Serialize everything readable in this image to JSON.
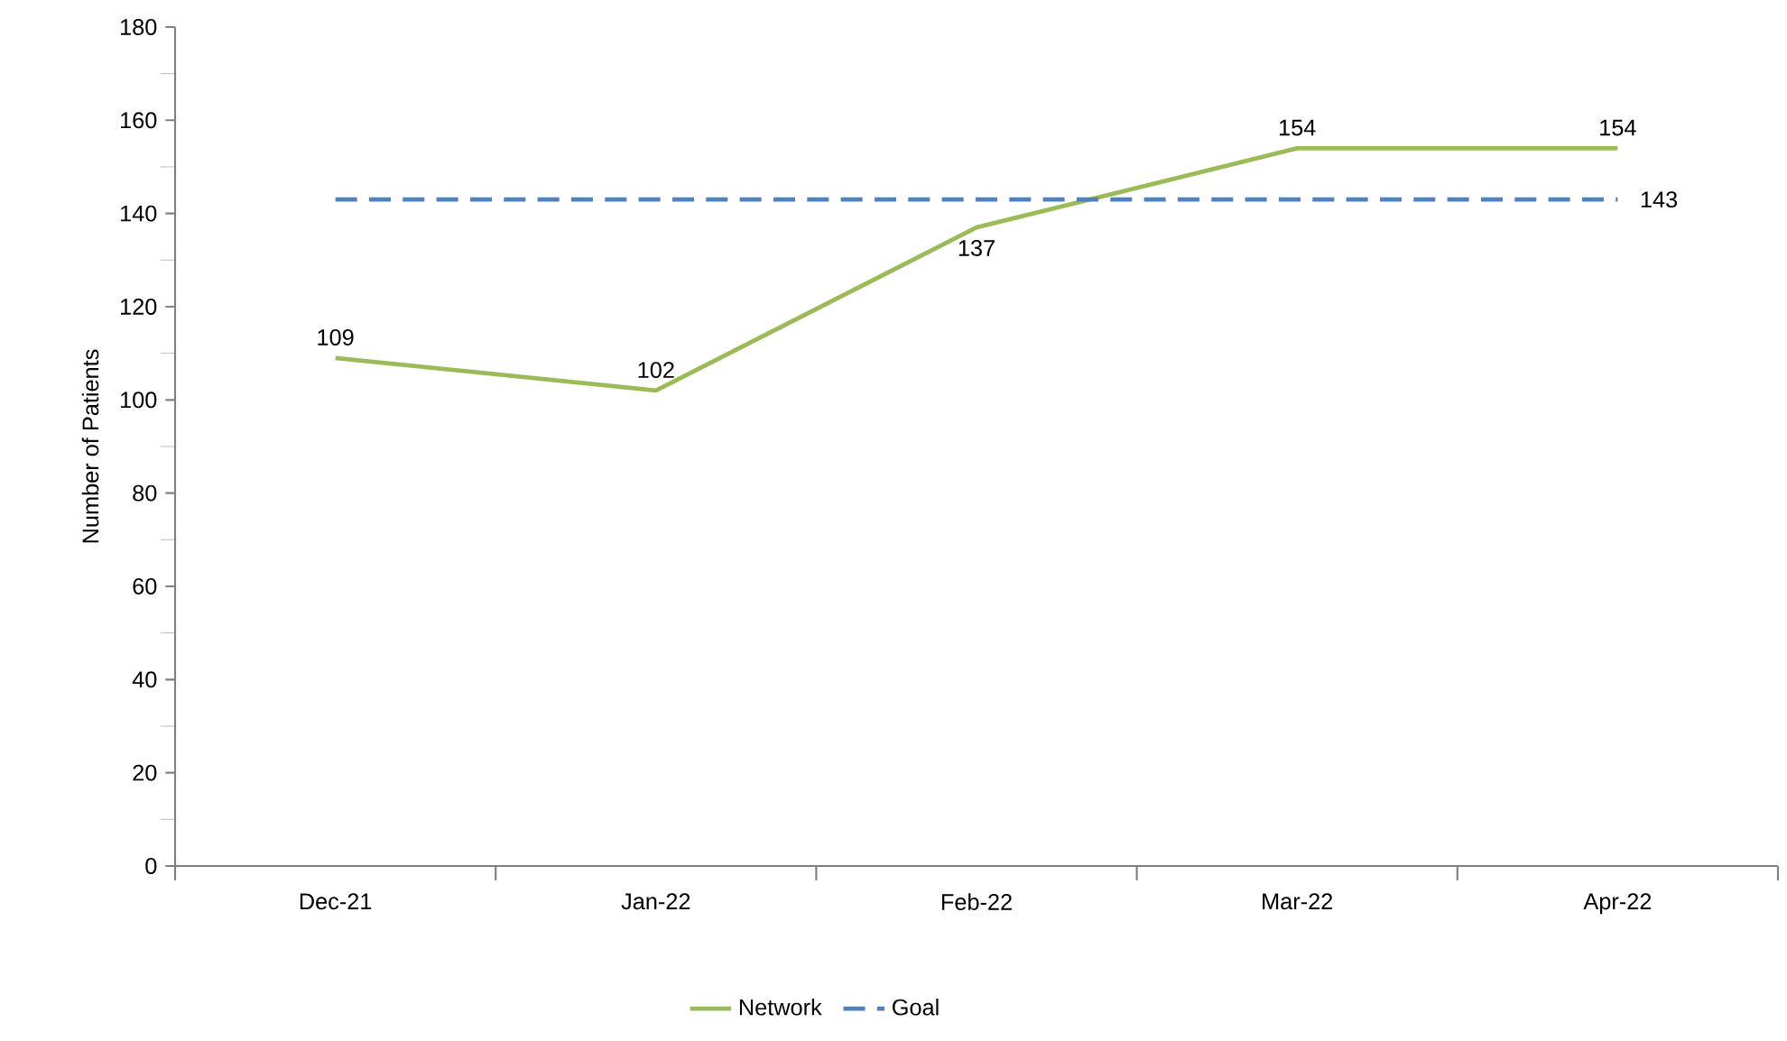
{
  "chart_data": {
    "type": "line",
    "ylabel": "Number of Patients",
    "categories": [
      "Dec-21",
      "Jan-22",
      "Feb-22",
      "Mar-22",
      "Apr-22"
    ],
    "series": [
      {
        "name": "Network",
        "color": "#9bbb59",
        "line_style": "solid",
        "values": [
          109,
          102,
          137,
          154,
          154
        ],
        "value_labels": [
          "109",
          "102",
          "137",
          "154",
          "154"
        ]
      },
      {
        "name": "Goal",
        "color": "#4f81bd",
        "line_style": "dashed",
        "values": [
          143,
          143,
          143,
          143,
          143
        ],
        "value_labels": [
          null,
          null,
          null,
          null,
          "143"
        ]
      }
    ],
    "ylim": [
      0,
      180
    ],
    "yticks": [
      0,
      20,
      40,
      60,
      80,
      100,
      120,
      140,
      160,
      180
    ],
    "grid": false,
    "legend": "bottom",
    "marker": "none"
  }
}
